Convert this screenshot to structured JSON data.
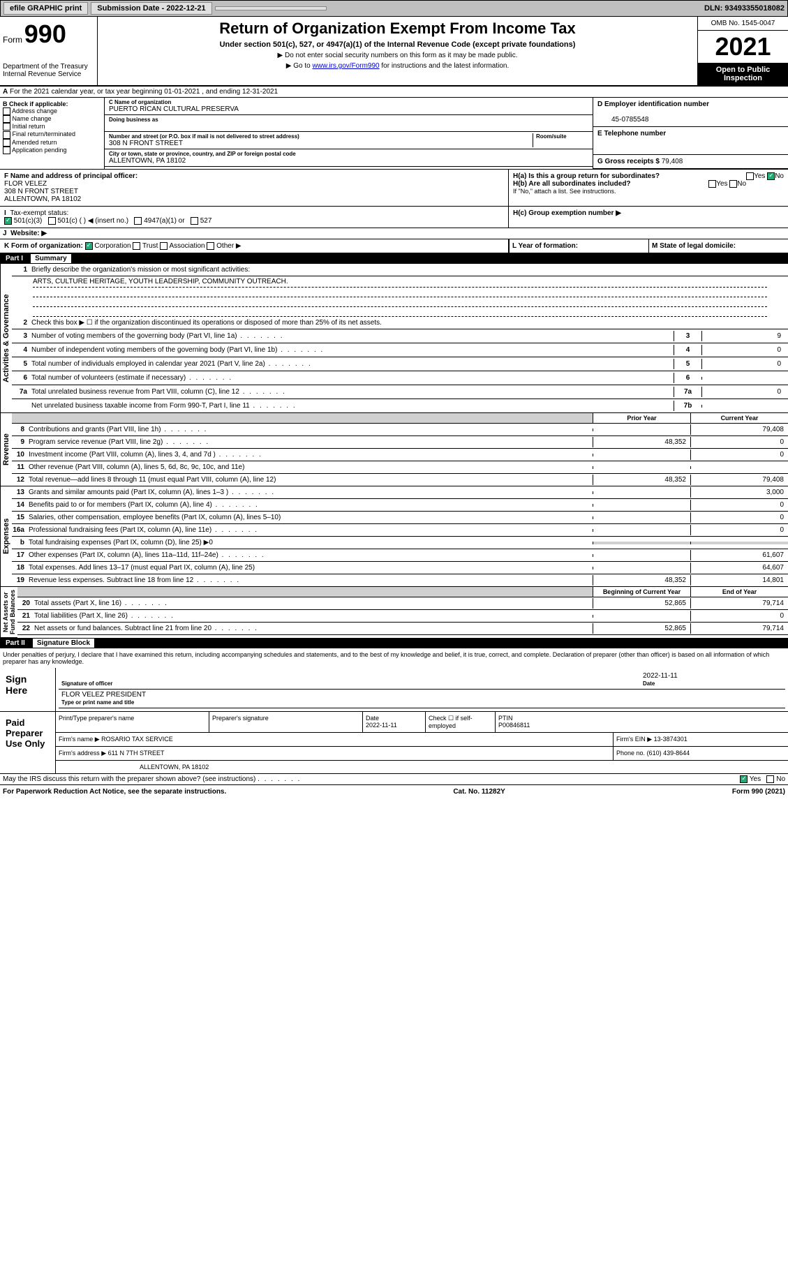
{
  "topbar": {
    "efile": "efile GRAPHIC print",
    "subdate_label": "Submission Date - 2022-12-21",
    "dln": "DLN: 93493355018082"
  },
  "header": {
    "form_word": "Form",
    "form_num": "990",
    "title": "Return of Organization Exempt From Income Tax",
    "sub": "Under section 501(c), 527, or 4947(a)(1) of the Internal Revenue Code (except private foundations)",
    "note1": "▶ Do not enter social security numbers on this form as it may be made public.",
    "note2_pre": "▶ Go to ",
    "note2_link": "www.irs.gov/Form990",
    "note2_post": " for instructions and the latest information.",
    "dept": "Department of the Treasury\nInternal Revenue Service",
    "omb": "OMB No. 1545-0047",
    "year": "2021",
    "inspect": "Open to Public Inspection"
  },
  "a": "For the 2021 calendar year, or tax year beginning 01-01-2021  , and ending 12-31-2021",
  "b": {
    "label": "B Check if applicable:",
    "items": [
      "Address change",
      "Name change",
      "Initial return",
      "Final return/terminated",
      "Amended return",
      "Application pending"
    ]
  },
  "c": {
    "name_label": "C Name of organization",
    "name": "PUERTO RICAN CULTURAL PRESERVA",
    "dba_label": "Doing business as",
    "addr_label": "Number and street (or P.O. box if mail is not delivered to street address)",
    "room_label": "Room/suite",
    "addr": "308 N FRONT STREET",
    "city_label": "City or town, state or province, country, and ZIP or foreign postal code",
    "city": "ALLENTOWN, PA  18102"
  },
  "d": {
    "label": "D Employer identification number",
    "val": "45-0785548"
  },
  "e": {
    "label": "E Telephone number",
    "val": ""
  },
  "g": {
    "label": "G Gross receipts $",
    "val": "79,408"
  },
  "f": {
    "label": "F Name and address of principal officer:",
    "name": "FLOR VELEZ",
    "addr1": "308 N FRONT STREET",
    "addr2": "ALLENTOWN, PA  18102"
  },
  "h": {
    "a": "H(a)  Is this a group return for subordinates?",
    "b": "H(b)  Are all subordinates included?",
    "attach": "If \"No,\" attach a list. See instructions.",
    "c": "H(c)  Group exemption number ▶",
    "yes": "Yes",
    "no": "No"
  },
  "i": {
    "label": "Tax-exempt status:",
    "opts": [
      "501(c)(3)",
      "501(c) (  ) ◀ (insert no.)",
      "4947(a)(1) or",
      "527"
    ]
  },
  "j": {
    "label": "Website: ▶"
  },
  "k": {
    "label": "K Form of organization:",
    "opts": [
      "Corporation",
      "Trust",
      "Association",
      "Other ▶"
    ]
  },
  "l": {
    "label": "L Year of formation:"
  },
  "m": {
    "label": "M State of legal domicile:"
  },
  "part1": {
    "num": "Part I",
    "title": "Summary"
  },
  "sum": {
    "l1": "Briefly describe the organization's mission or most significant activities:",
    "l1v": "ARTS, CULTURE HERITAGE, YOUTH LEADERSHIP, COMMUNITY OUTREACH.",
    "l2": "Check this box ▶ ☐  if the organization discontinued its operations or disposed of more than 25% of its net assets.",
    "l3": "Number of voting members of the governing body (Part VI, line 1a)",
    "l4": "Number of independent voting members of the governing body (Part VI, line 1b)",
    "l5": "Total number of individuals employed in calendar year 2021 (Part V, line 2a)",
    "l6": "Total number of volunteers (estimate if necessary)",
    "l7a": "Total unrelated business revenue from Part VIII, column (C), line 12",
    "l7b": "Net unrelated business taxable income from Form 990-T, Part I, line 11",
    "v3": "9",
    "v4": "0",
    "v5": "0",
    "v6": "",
    "v7a": "0",
    "v7b": ""
  },
  "colh": {
    "prior": "Prior Year",
    "curr": "Current Year",
    "beg": "Beginning of Current Year",
    "end": "End of Year"
  },
  "rev": {
    "l8": "Contributions and grants (Part VIII, line 1h)",
    "l9": "Program service revenue (Part VIII, line 2g)",
    "l10": "Investment income (Part VIII, column (A), lines 3, 4, and 7d )",
    "l11": "Other revenue (Part VIII, column (A), lines 5, 6d, 8c, 9c, 10c, and 11e)",
    "l12": "Total revenue—add lines 8 through 11 (must equal Part VIII, column (A), line 12)",
    "p8": "",
    "c8": "79,408",
    "p9": "48,352",
    "c9": "0",
    "p10": "",
    "c10": "0",
    "p11": "",
    "c11": "",
    "p12": "48,352",
    "c12": "79,408"
  },
  "exp": {
    "l13": "Grants and similar amounts paid (Part IX, column (A), lines 1–3 )",
    "l14": "Benefits paid to or for members (Part IX, column (A), line 4)",
    "l15": "Salaries, other compensation, employee benefits (Part IX, column (A), lines 5–10)",
    "l16a": "Professional fundraising fees (Part IX, column (A), line 11e)",
    "l16b": "Total fundraising expenses (Part IX, column (D), line 25) ▶0",
    "l17": "Other expenses (Part IX, column (A), lines 11a–11d, 11f–24e)",
    "l18": "Total expenses. Add lines 13–17 (must equal Part IX, column (A), line 25)",
    "l19": "Revenue less expenses. Subtract line 18 from line 12",
    "c13": "3,000",
    "c14": "0",
    "c15": "0",
    "c16a": "0",
    "c17": "61,607",
    "c18": "64,607",
    "p19": "48,352",
    "c19": "14,801"
  },
  "na": {
    "l20": "Total assets (Part X, line 16)",
    "l21": "Total liabilities (Part X, line 26)",
    "l22": "Net assets or fund balances. Subtract line 21 from line 20",
    "b20": "52,865",
    "e20": "79,714",
    "b21": "",
    "e21": "0",
    "b22": "52,865",
    "e22": "79,714"
  },
  "part2": {
    "num": "Part II",
    "title": "Signature Block"
  },
  "penalty": "Under penalties of perjury, I declare that I have examined this return, including accompanying schedules and statements, and to the best of my knowledge and belief, it is true, correct, and complete. Declaration of preparer (other than officer) is based on all information of which preparer has any knowledge.",
  "sign": {
    "here": "Sign Here",
    "sig_label": "Signature of officer",
    "date_label": "Date",
    "date": "2022-11-11",
    "name": "FLOR VELEZ  PRESIDENT",
    "name_label": "Type or print name and title"
  },
  "prep": {
    "label": "Paid Preparer Use Only",
    "h1": "Print/Type preparer's name",
    "h2": "Preparer's signature",
    "h3": "Date",
    "h4": "Check ☐ if self-employed",
    "h5": "PTIN",
    "date": "2022-11-11",
    "ptin": "P00846811",
    "firm_label": "Firm's name   ▶",
    "firm": "ROSARIO TAX SERVICE",
    "ein_label": "Firm's EIN ▶",
    "ein": "13-3874301",
    "addr_label": "Firm's address ▶",
    "addr": "611 N 7TH STREET",
    "addr2": "ALLENTOWN, PA  18102",
    "phone_label": "Phone no.",
    "phone": "(610) 439-8644"
  },
  "discuss": "May the IRS discuss this return with the preparer shown above? (see instructions)",
  "footer": {
    "left": "For Paperwork Reduction Act Notice, see the separate instructions.",
    "mid": "Cat. No. 11282Y",
    "right": "Form 990 (2021)"
  },
  "vlabels": {
    "ag": "Activities & Governance",
    "rev": "Revenue",
    "exp": "Expenses",
    "na": "Net Assets or\nFund Balances"
  }
}
